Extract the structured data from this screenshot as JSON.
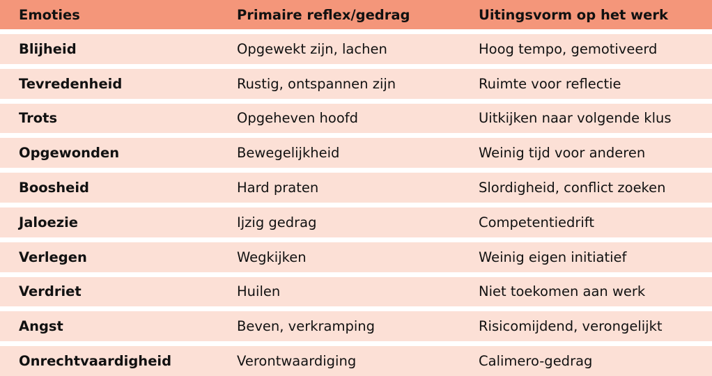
{
  "table": {
    "headers": [
      "Emoties",
      "Primaire reflex/gedrag",
      "Uitingsvorm op het werk"
    ],
    "rows": [
      [
        "Blijheid",
        "Opgewekt zijn, lachen",
        "Hoog tempo, gemotiveerd"
      ],
      [
        "Tevredenheid",
        "Rustig, ontspannen zijn",
        "Ruimte voor reflectie"
      ],
      [
        "Trots",
        "Opgeheven hoofd",
        "Uitkijken naar volgende klus"
      ],
      [
        "Opgewonden",
        "Bewegelijkheid",
        "Weinig tijd voor anderen"
      ],
      [
        "Boosheid",
        "Hard praten",
        "Slordigheid, conflict zoeken"
      ],
      [
        "Jaloezie",
        "Ijzig gedrag",
        "Competentiedrift"
      ],
      [
        "Verlegen",
        "Wegkijken",
        "Weinig eigen initiatief"
      ],
      [
        "Verdriet",
        "Huilen",
        "Niet toekomen aan werk"
      ],
      [
        "Angst",
        "Beven, verkramping",
        "Risicomijdend, verongelijkt"
      ],
      [
        "Onrechtvaardigheid",
        "Verontwaardiging",
        "Calimero-gedrag"
      ]
    ]
  },
  "colors": {
    "header": "#F4967A",
    "row": "#FCE0D6"
  }
}
